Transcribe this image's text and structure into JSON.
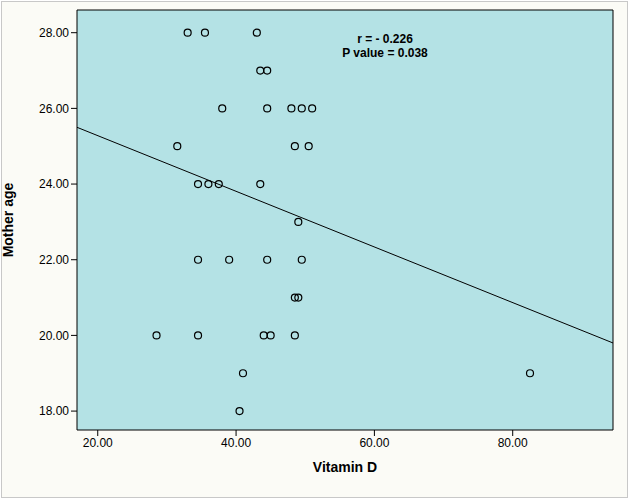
{
  "chart_data": {
    "type": "scatter",
    "x_label": "Vitamin D",
    "y_label": "Mother age",
    "annotations": [
      "r = - 0.226",
      "P value = 0.038"
    ],
    "x": [
      33,
      35.5,
      43,
      43.5,
      44.5,
      38,
      44.5,
      48,
      49.5,
      51,
      31.5,
      48.5,
      50.5,
      34.5,
      36,
      37.5,
      43.5,
      49,
      34.5,
      39,
      44.5,
      49.5,
      48.5,
      49,
      28.5,
      34.5,
      44,
      45,
      48.5,
      41,
      82.5,
      40.5
    ],
    "values": [
      28,
      28,
      28,
      27,
      27,
      26,
      26,
      26,
      26,
      26,
      25,
      25,
      25,
      24,
      24,
      24,
      24,
      23,
      22,
      22,
      22,
      22,
      21,
      21,
      20,
      20,
      20,
      20,
      20,
      19,
      19,
      18
    ],
    "color": "#000000",
    "marker": "circle_open",
    "background": "#b4e2e5",
    "trend_line": {
      "x": [
        17,
        94.5
      ],
      "y": [
        25.5,
        19.8
      ]
    },
    "xlim": [
      17,
      94.5
    ],
    "ylim": [
      17.5,
      28.6
    ],
    "xticks": [
      {
        "value": 20,
        "label": "20.00"
      },
      {
        "value": 40,
        "label": "40.00"
      },
      {
        "value": 60,
        "label": "60.00"
      },
      {
        "value": 80,
        "label": "80.00"
      }
    ],
    "yticks": [
      {
        "value": 18,
        "label": "18.00"
      },
      {
        "value": 20,
        "label": "20.00"
      },
      {
        "value": 22,
        "label": "22.00"
      },
      {
        "value": 24,
        "label": "24.00"
      },
      {
        "value": 26,
        "label": "26.00"
      },
      {
        "value": 28,
        "label": "28.00"
      }
    ],
    "grid": false
  }
}
